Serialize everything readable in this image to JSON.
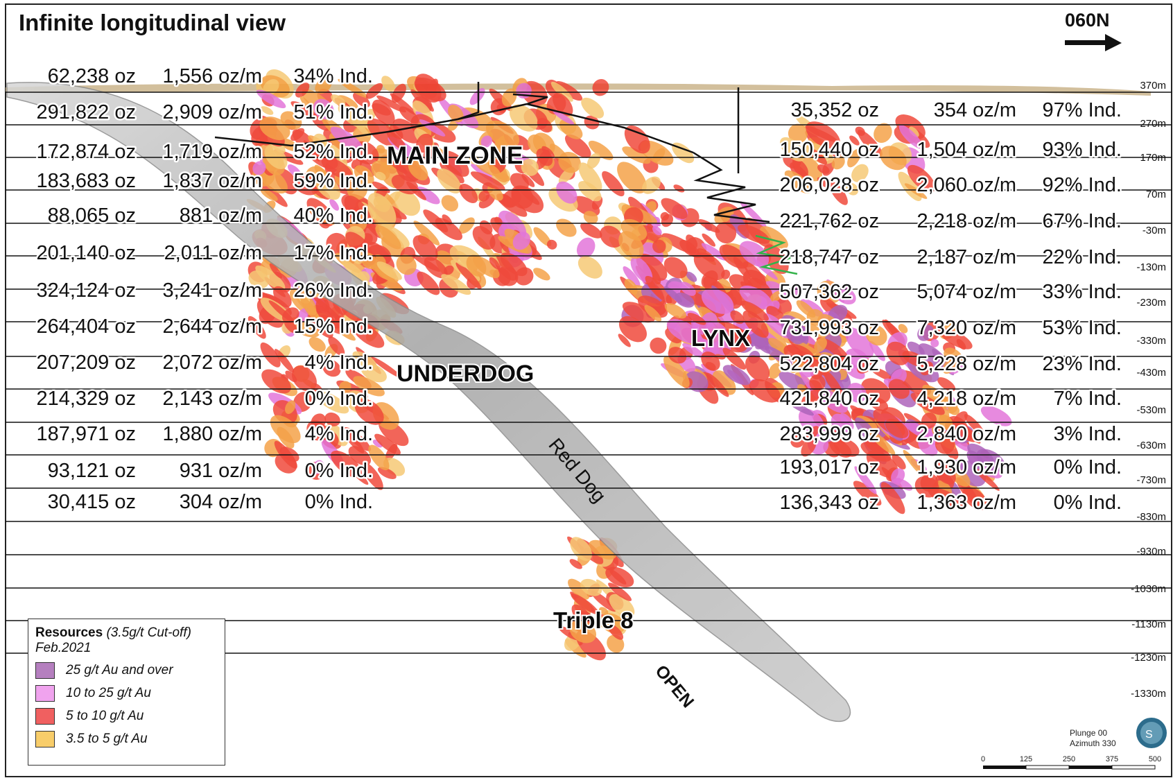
{
  "title": "Infinite longitudinal view",
  "direction": "060N",
  "elevations": [
    "370m",
    "270m",
    "170m",
    "70m",
    "-30m",
    "-130m",
    "-230m",
    "-330m",
    "-430m",
    "-530m",
    "-630m",
    "-730m",
    "-830m",
    "-930m",
    "-1030m",
    "-1130m",
    "-1230m",
    "-1330m"
  ],
  "left_table": [
    {
      "oz": "62,238 oz",
      "ozm": "1,556",
      "unit": "oz/m",
      "ind": "34% Ind."
    },
    {
      "oz": "291,822 oz",
      "ozm": "2,909",
      "unit": "oz/m",
      "ind": "51% Ind."
    },
    {
      "oz": "172,874 oz",
      "ozm": "1,719",
      "unit": "oz/m",
      "ind": "52% Ind."
    },
    {
      "oz": "183,683 oz",
      "ozm": "1,837",
      "unit": "oz/m",
      "ind": "59% Ind."
    },
    {
      "oz": "88,065 oz",
      "ozm": "881 oz/m",
      "unit": "",
      "ind": "40% Ind."
    },
    {
      "oz": "201,140 oz",
      "ozm": "2,011 oz/m",
      "unit": "",
      "ind": "17% Ind."
    },
    {
      "oz": "324,124 oz",
      "ozm": "3,241 oz/m",
      "unit": "",
      "ind": "26% Ind."
    },
    {
      "oz": "264,404 oz",
      "ozm": "2,644 oz/m",
      "unit": "",
      "ind": "15% Ind."
    },
    {
      "oz": "207,209 oz",
      "ozm": "2,072 oz/m",
      "unit": "",
      "ind": "4% Ind."
    },
    {
      "oz": "214,329 oz",
      "ozm": "2,143 oz/m",
      "unit": "",
      "ind": "0% Ind."
    },
    {
      "oz": "187,971 oz",
      "ozm": "1,880 oz/m",
      "unit": "",
      "ind": "4% Ind."
    },
    {
      "oz": "93,121 oz",
      "ozm": "931 oz/m",
      "unit": "",
      "ind": "0% Ind."
    },
    {
      "oz": "30,415 oz",
      "ozm": "304 oz/m",
      "unit": "",
      "ind": "0% Ind."
    }
  ],
  "right_table": [
    {
      "oz": "35,352 oz",
      "ozm": "354 oz/m",
      "ind": "97% Ind."
    },
    {
      "oz": "150,440 oz",
      "ozm": "1,504 oz/m",
      "ind": "93% Ind."
    },
    {
      "oz": "206,028 oz",
      "ozm": "2,060 oz/m",
      "ind": "92% Ind."
    },
    {
      "oz": "221,762 oz",
      "ozm": "2,218 oz/m",
      "ind": "67% Ind."
    },
    {
      "oz": "218,747 oz",
      "ozm": "2,187 oz/m",
      "ind": "22% Ind."
    },
    {
      "oz": "507,362 oz",
      "ozm": "5,074 oz/m",
      "ind": "33% Ind."
    },
    {
      "oz": "731,993 oz",
      "ozm": "7,320 oz/m",
      "ind": "53% Ind."
    },
    {
      "oz": "522,804 oz",
      "ozm": "5,228 oz/m",
      "ind": "23% Ind."
    },
    {
      "oz": "421,840 oz",
      "ozm": "4,218 oz/m",
      "ind": "7% Ind."
    },
    {
      "oz": "283,999 oz",
      "ozm": "2,840 oz/m",
      "ind": "3% Ind."
    },
    {
      "oz": "193,017 oz",
      "ozm": "1,930 oz/m",
      "ind": "0% Ind."
    },
    {
      "oz": "136,343 oz",
      "ozm": "1,363 oz/m",
      "ind": "0% Ind."
    }
  ],
  "zones": {
    "main": "MAIN ZONE",
    "lynx": "LYNX",
    "underdog": "UNDERDOG",
    "triple8": "Triple 8",
    "reddog": "Red Dog",
    "open": "OPEN"
  },
  "legend": {
    "title_bold": "Resources",
    "title_italic": "(3.5g/t Cut-off)",
    "date": "Feb.2021",
    "items": [
      {
        "label": "25 g/t Au and over",
        "color": "#b57fbf"
      },
      {
        "label": "10 to 25 g/t Au",
        "color": "#f0a3ee"
      },
      {
        "label": "5 to 10 g/t Au",
        "color": "#f06060"
      },
      {
        "label": "3.5 to 5 g/t Au",
        "color": "#f8cd6a"
      }
    ]
  },
  "plunge": "Plunge 00",
  "azimuth": "Azimuth 330",
  "scale_ticks": [
    "0",
    "125",
    "250",
    "375",
    "500"
  ],
  "colors": {
    "red": "#ee3b2b",
    "orange": "#f39a3a",
    "yellow": "#f6c46a",
    "pink": "#e06ad6",
    "purple": "#a757b5",
    "gray": "#9c9c9c",
    "topo": "#c8b48c"
  }
}
